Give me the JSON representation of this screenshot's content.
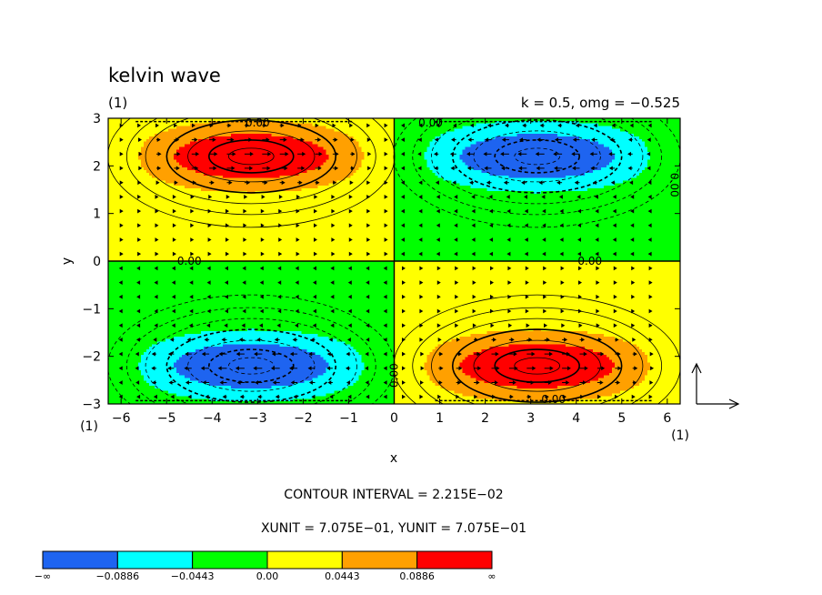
{
  "title": "kelvin wave",
  "label_left": "(1)",
  "label_right": "k = 0.5, omg = −0.525",
  "chart_data": {
    "type": "heatmap",
    "description_of_field": "contour",
    "xlabel": "x",
    "ylabel": "y",
    "xlim": [
      -6.283,
      6.283
    ],
    "ylim": [
      -3,
      3
    ],
    "x_ticks": [
      -6,
      -5,
      -4,
      -3,
      -2,
      -1,
      0,
      1,
      2,
      3,
      4,
      5,
      6
    ],
    "y_ticks": [
      -3,
      -2,
      -1,
      0,
      1,
      2,
      3
    ],
    "x_tick_labels": [
      "−6",
      "−5",
      "−4",
      "−3",
      "−2",
      "−1",
      "0",
      "1",
      "2",
      "3",
      "4",
      "5",
      "6"
    ],
    "y_tick_labels": [
      "−3",
      "−2",
      "−1",
      "0",
      "1",
      "2",
      "3"
    ],
    "x_axis_note": "(1)",
    "y_axis_note": "(1)",
    "contour_labels": [
      "0.00",
      "0.00",
      "0.00",
      "0.00",
      "0.00",
      "0.00",
      "0.00"
    ],
    "contour_interval": 0.02215,
    "levels": [
      -0.0886,
      -0.0443,
      0.0,
      0.0443,
      0.0886
    ],
    "extrema": [
      {
        "x": -3.14,
        "y": 2.2,
        "sign": "positive"
      },
      {
        "x": 3.14,
        "y": 2.2,
        "sign": "negative"
      },
      {
        "x": -3.14,
        "y": -2.2,
        "sign": "negative"
      },
      {
        "x": 3.14,
        "y": -2.2,
        "sign": "positive"
      }
    ],
    "vectors": true
  },
  "footer": {
    "contour_interval": "CONTOUR INTERVAL = 2.215E−02",
    "units": "XUNIT = 7.075E−01, YUNIT = 7.075E−01"
  },
  "colorbar": {
    "colors": [
      "#1e64f0",
      "#00ffff",
      "#00ff00",
      "#ffff00",
      "#ffa000",
      "#ff0000"
    ],
    "labels": [
      "−∞",
      "−0.0886",
      "−0.0443",
      "0.00",
      "0.0443",
      "0.0886",
      "∞"
    ]
  }
}
